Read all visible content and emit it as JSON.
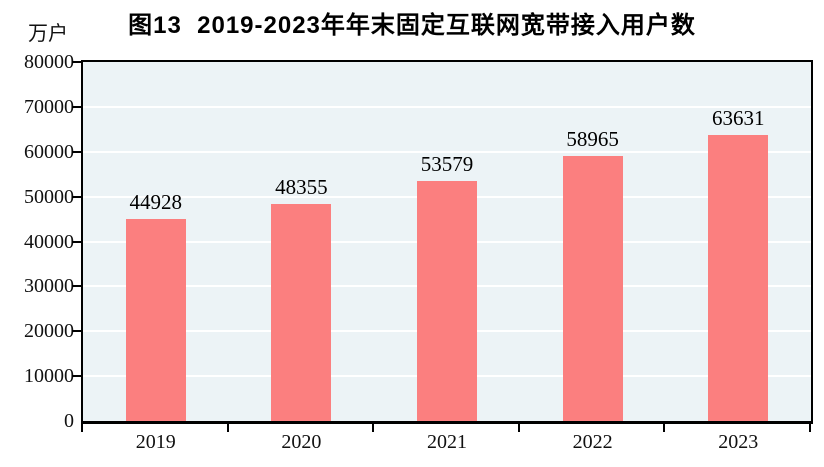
{
  "title": "图13  2019-2023年年末固定互联网宽带接入用户数",
  "unit_label": "万户",
  "colors": {
    "bar": "#fb7f7f",
    "plot_bg": "#ecf3f6",
    "gridline": "#ffffff",
    "axis": "#000000",
    "text": "#111111"
  },
  "chart_data": {
    "type": "bar",
    "title": "图13  2019-2023年年末固定互联网宽带接入用户数",
    "categories": [
      "2019",
      "2020",
      "2021",
      "2022",
      "2023"
    ],
    "values": [
      44928,
      48355,
      53579,
      58965,
      63631
    ],
    "data_labels_shown": true,
    "xlabel": "",
    "ylabel": "万户",
    "ylim": [
      0,
      80000
    ],
    "ytick_step": 10000,
    "ytick_labels": [
      "0",
      "10000",
      "20000",
      "30000",
      "40000",
      "50000",
      "60000",
      "70000",
      "80000"
    ],
    "grid": true,
    "gridline_orientation": "horizontal",
    "legend": false,
    "plot_background": "light-blue",
    "bar_color": "salmon"
  }
}
